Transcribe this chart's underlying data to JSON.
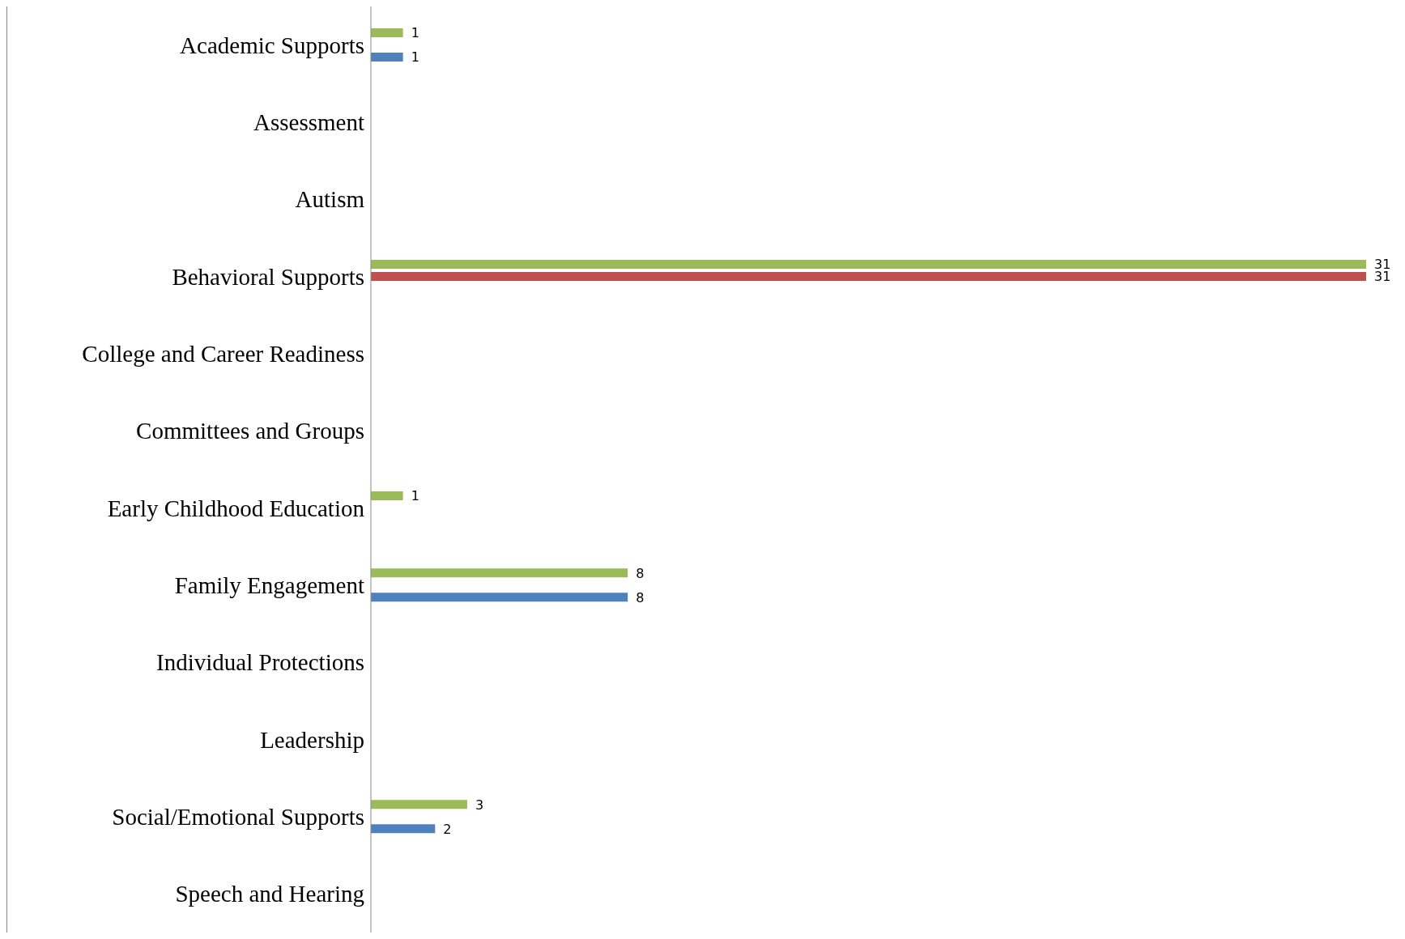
{
  "chart_data": {
    "type": "bar",
    "orientation": "horizontal",
    "categories": [
      "Academic Supports",
      "Assessment",
      "Autism",
      "Behavioral Supports",
      "College and Career Readiness",
      "Committees and Groups",
      "Early Childhood Education",
      "Family Engagement",
      "Individual Protections",
      "Leadership",
      "Social/Emotional Supports",
      "Speech and Hearing"
    ],
    "series": [
      {
        "color": "#9bbb59",
        "values": [
          1,
          null,
          null,
          31,
          null,
          null,
          1,
          8,
          null,
          null,
          3,
          null
        ]
      },
      {
        "color": "#c0504d",
        "values": [
          null,
          null,
          null,
          31,
          null,
          null,
          null,
          null,
          null,
          null,
          null,
          null
        ]
      },
      {
        "color": "#4f81bd",
        "values": [
          1,
          null,
          null,
          null,
          null,
          null,
          null,
          8,
          null,
          null,
          2,
          null
        ]
      }
    ],
    "data_labels": true,
    "tick_labels": "y"
  }
}
